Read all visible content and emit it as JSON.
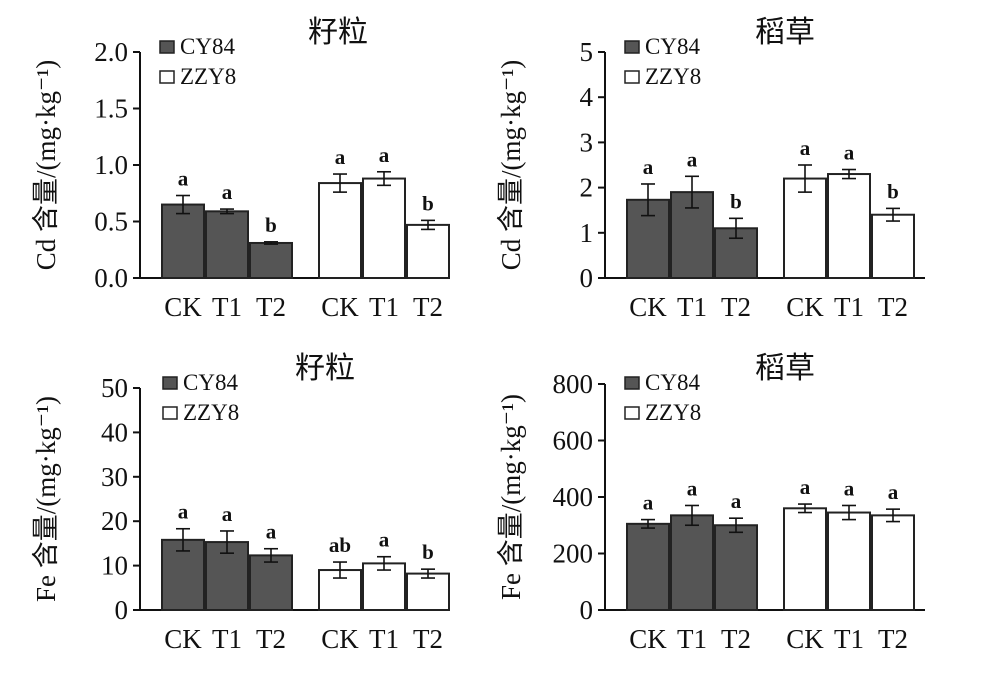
{
  "colors": {
    "CY84": "#555555",
    "ZZY8": "#ffffff",
    "stroke": "#222222"
  },
  "chart_data": [
    {
      "type": "bar",
      "title": "籽粒",
      "ylabel": "Cd 含量/(mg·kg⁻¹)",
      "ylim": [
        0,
        2.0
      ],
      "yticks": [
        "0.0",
        "0.5",
        "1.0",
        "1.5",
        "2.0"
      ],
      "ytick_values": [
        0,
        0.5,
        1.0,
        1.5,
        2.0
      ],
      "categories": [
        "CK",
        "T1",
        "T2"
      ],
      "series": [
        {
          "name": "CY84",
          "values": [
            0.65,
            0.59,
            0.31
          ],
          "errors": [
            0.08,
            0.02,
            0.01
          ],
          "labels": [
            "a",
            "a",
            "b"
          ]
        },
        {
          "name": "ZZY8",
          "values": [
            0.84,
            0.88,
            0.47
          ],
          "errors": [
            0.08,
            0.06,
            0.04
          ],
          "labels": [
            "a",
            "a",
            "b"
          ]
        }
      ]
    },
    {
      "type": "bar",
      "title": "稻草",
      "ylabel": "Cd 含量/(mg·kg⁻¹)",
      "ylim": [
        0,
        5
      ],
      "yticks": [
        "0",
        "1",
        "2",
        "3",
        "4",
        "5"
      ],
      "ytick_values": [
        0,
        1,
        2,
        3,
        4,
        5
      ],
      "categories": [
        "CK",
        "T1",
        "T2"
      ],
      "series": [
        {
          "name": "CY84",
          "values": [
            1.73,
            1.9,
            1.1
          ],
          "errors": [
            0.35,
            0.35,
            0.22
          ],
          "labels": [
            "a",
            "a",
            "b"
          ]
        },
        {
          "name": "ZZY8",
          "values": [
            2.2,
            2.3,
            1.4
          ],
          "errors": [
            0.3,
            0.1,
            0.14
          ],
          "labels": [
            "a",
            "a",
            "b"
          ]
        }
      ]
    },
    {
      "type": "bar",
      "title": "籽粒",
      "ylabel": "Fe 含量/(mg·kg⁻¹)",
      "ylim": [
        0,
        50
      ],
      "yticks": [
        "0",
        "10",
        "20",
        "30",
        "40",
        "50"
      ],
      "ytick_values": [
        0,
        10,
        20,
        30,
        40,
        50
      ],
      "categories": [
        "CK",
        "T1",
        "T2"
      ],
      "series": [
        {
          "name": "CY84",
          "values": [
            15.8,
            15.3,
            12.3
          ],
          "errors": [
            2.5,
            2.5,
            1.5
          ],
          "labels": [
            "a",
            "a",
            "a"
          ]
        },
        {
          "name": "ZZY8",
          "values": [
            9.0,
            10.5,
            8.2
          ],
          "errors": [
            1.8,
            1.5,
            1.0
          ],
          "labels": [
            "ab",
            "a",
            "b"
          ]
        }
      ]
    },
    {
      "type": "bar",
      "title": "稻草",
      "ylabel": "Fe 含量/(mg·kg⁻¹)",
      "ylim": [
        0,
        800
      ],
      "yticks": [
        "0",
        "200",
        "400",
        "600",
        "800"
      ],
      "ytick_values": [
        0,
        200,
        400,
        600,
        800
      ],
      "categories": [
        "CK",
        "T1",
        "T2"
      ],
      "series": [
        {
          "name": "CY84",
          "values": [
            305,
            335,
            300
          ],
          "errors": [
            15,
            35,
            25
          ],
          "labels": [
            "a",
            "a",
            "a"
          ]
        },
        {
          "name": "ZZY8",
          "values": [
            360,
            345,
            335
          ],
          "errors": [
            15,
            25,
            22
          ],
          "labels": [
            "a",
            "a",
            "a"
          ]
        }
      ]
    }
  ]
}
